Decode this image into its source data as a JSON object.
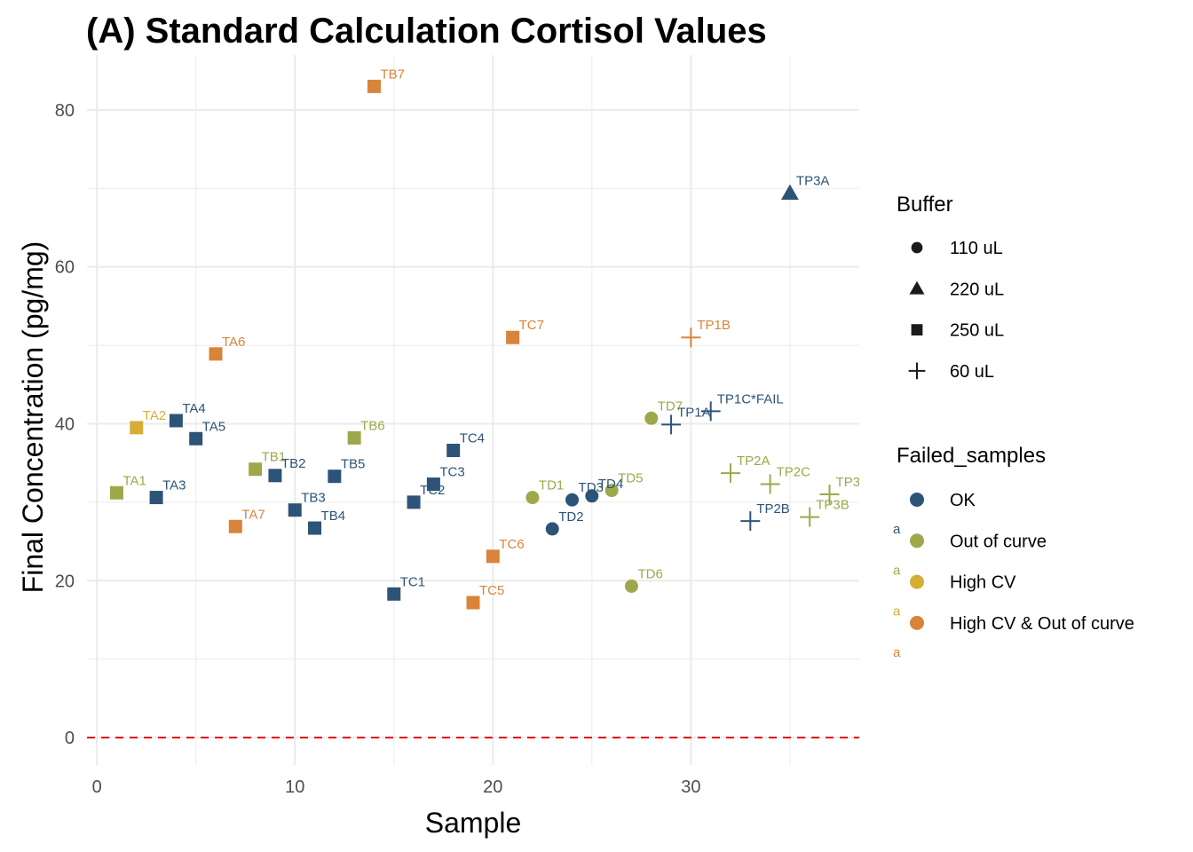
{
  "chart_data": {
    "type": "scatter",
    "title": "(A) Standard Calculation Cortisol Values",
    "xlabel": "Sample",
    "ylabel": "Final Concentration (pg/mg)",
    "xlim": [
      -0.5,
      38.5
    ],
    "ylim": [
      -3.5,
      87
    ],
    "x_ticks": [
      0,
      10,
      20,
      30
    ],
    "y_ticks": [
      0,
      20,
      40,
      60,
      80
    ],
    "grid": true,
    "reference_line": {
      "y": 0,
      "color": "#e41a1c",
      "style": "dashed"
    },
    "legend_placement": "right",
    "legends": [
      {
        "title": "Buffer",
        "items": [
          {
            "label": "110 uL",
            "shape": "circle"
          },
          {
            "label": "220 uL",
            "shape": "triangle"
          },
          {
            "label": "250 uL",
            "shape": "square"
          },
          {
            "label": "60 uL",
            "shape": "plus"
          }
        ]
      },
      {
        "title": "Failed_samples",
        "items": [
          {
            "label": "OK",
            "color": "#2d5478"
          },
          {
            "label": "Out of curve",
            "color": "#9ea84a"
          },
          {
            "label": "High CV",
            "color": "#d6ae36"
          },
          {
            "label": "High CV & Out of curve",
            "color": "#d9843a"
          }
        ],
        "key_glyph_text": "a"
      }
    ],
    "points": [
      {
        "x": 1,
        "y": 31.2,
        "label": "TA1",
        "buffer": "250 uL",
        "status": "Out of curve"
      },
      {
        "x": 2,
        "y": 39.5,
        "label": "TA2",
        "buffer": "250 uL",
        "status": "High CV"
      },
      {
        "x": 3,
        "y": 30.6,
        "label": "TA3",
        "buffer": "250 uL",
        "status": "OK"
      },
      {
        "x": 4,
        "y": 40.4,
        "label": "TA4",
        "buffer": "250 uL",
        "status": "OK"
      },
      {
        "x": 5,
        "y": 38.1,
        "label": "TA5",
        "buffer": "250 uL",
        "status": "OK"
      },
      {
        "x": 6,
        "y": 48.9,
        "label": "TA6",
        "buffer": "250 uL",
        "status": "High CV & Out of curve"
      },
      {
        "x": 7,
        "y": 26.9,
        "label": "TA7",
        "buffer": "250 uL",
        "status": "High CV & Out of curve"
      },
      {
        "x": 8,
        "y": 34.2,
        "label": "TB1",
        "buffer": "250 uL",
        "status": "Out of curve"
      },
      {
        "x": 9,
        "y": 33.4,
        "label": "TB2",
        "buffer": "250 uL",
        "status": "OK"
      },
      {
        "x": 10,
        "y": 29.0,
        "label": "TB3",
        "buffer": "250 uL",
        "status": "OK"
      },
      {
        "x": 11,
        "y": 26.7,
        "label": "TB4",
        "buffer": "250 uL",
        "status": "OK"
      },
      {
        "x": 12,
        "y": 33.3,
        "label": "TB5",
        "buffer": "250 uL",
        "status": "OK"
      },
      {
        "x": 13,
        "y": 38.2,
        "label": "TB6",
        "buffer": "250 uL",
        "status": "Out of curve"
      },
      {
        "x": 14,
        "y": 83.0,
        "label": "TB7",
        "buffer": "250 uL",
        "status": "High CV & Out of curve"
      },
      {
        "x": 15,
        "y": 18.3,
        "label": "TC1",
        "buffer": "250 uL",
        "status": "OK"
      },
      {
        "x": 16,
        "y": 30.0,
        "label": "TC2",
        "buffer": "250 uL",
        "status": "OK"
      },
      {
        "x": 17,
        "y": 32.3,
        "label": "TC3",
        "buffer": "250 uL",
        "status": "OK"
      },
      {
        "x": 18,
        "y": 36.6,
        "label": "TC4",
        "buffer": "250 uL",
        "status": "OK"
      },
      {
        "x": 19,
        "y": 17.2,
        "label": "TC5",
        "buffer": "250 uL",
        "status": "High CV & Out of curve"
      },
      {
        "x": 20,
        "y": 23.1,
        "label": "TC6",
        "buffer": "250 uL",
        "status": "High CV & Out of curve"
      },
      {
        "x": 21,
        "y": 51.0,
        "label": "TC7",
        "buffer": "250 uL",
        "status": "High CV & Out of curve"
      },
      {
        "x": 22,
        "y": 30.6,
        "label": "TD1",
        "buffer": "110 uL",
        "status": "Out of curve"
      },
      {
        "x": 23,
        "y": 26.6,
        "label": "TD2",
        "buffer": "110 uL",
        "status": "OK"
      },
      {
        "x": 24,
        "y": 30.3,
        "label": "TD3",
        "buffer": "110 uL",
        "status": "OK"
      },
      {
        "x": 25,
        "y": 30.8,
        "label": "TD4",
        "buffer": "110 uL",
        "status": "OK"
      },
      {
        "x": 26,
        "y": 31.5,
        "label": "TD5",
        "buffer": "110 uL",
        "status": "Out of curve"
      },
      {
        "x": 27,
        "y": 19.3,
        "label": "TD6",
        "buffer": "110 uL",
        "status": "Out of curve"
      },
      {
        "x": 28,
        "y": 40.7,
        "label": "TD7",
        "buffer": "110 uL",
        "status": "Out of curve"
      },
      {
        "x": 29,
        "y": 39.9,
        "label": "TP1A",
        "buffer": "60 uL",
        "status": "OK"
      },
      {
        "x": 30,
        "y": 51.0,
        "label": "TP1B",
        "buffer": "60 uL",
        "status": "High CV & Out of curve"
      },
      {
        "x": 31,
        "y": 41.6,
        "label": "TP1C*FAIL",
        "buffer": "60 uL",
        "status": "OK"
      },
      {
        "x": 32,
        "y": 33.7,
        "label": "TP2A",
        "buffer": "60 uL",
        "status": "Out of curve"
      },
      {
        "x": 33,
        "y": 27.6,
        "label": "TP2B",
        "buffer": "60 uL",
        "status": "OK"
      },
      {
        "x": 34,
        "y": 32.3,
        "label": "TP2C",
        "buffer": "60 uL",
        "status": "Out of curve"
      },
      {
        "x": 35,
        "y": 69.4,
        "label": "TP3A",
        "buffer": "220 uL",
        "status": "OK"
      },
      {
        "x": 36,
        "y": 28.1,
        "label": "TP3B",
        "buffer": "60 uL",
        "status": "Out of curve"
      },
      {
        "x": 37,
        "y": 31.0,
        "label": "TP3",
        "buffer": "60 uL",
        "status": "Out of curve"
      }
    ]
  }
}
